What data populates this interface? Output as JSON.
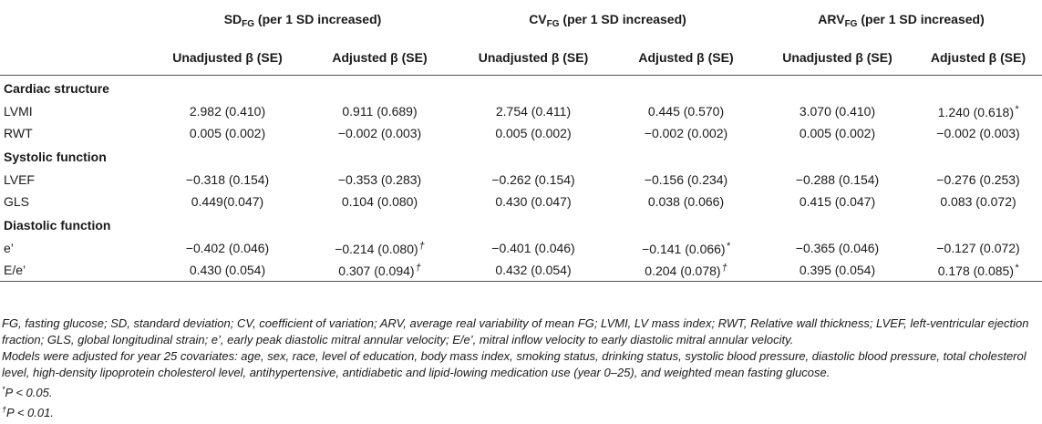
{
  "header": {
    "groups": [
      {
        "base": "SD",
        "sub": "FG",
        "suffix": " (per 1 SD increased)"
      },
      {
        "base": "CV",
        "sub": "FG",
        "suffix": " (per 1 SD increased)"
      },
      {
        "base": "ARV",
        "sub": "FG",
        "suffix": " (per 1 SD increased)"
      }
    ],
    "subheaders": [
      "Unadjusted β (SE)",
      "Adjusted β (SE)",
      "Unadjusted β (SE)",
      "Adjusted β (SE)",
      "Unadjusted β (SE)",
      "Adjusted β (SE)"
    ]
  },
  "sections": [
    {
      "title": "Cardiac structure",
      "rows": [
        {
          "label": "LVMI",
          "values": [
            "2.982 (0.410)",
            "0.911 (0.689)",
            "2.754 (0.411)",
            "0.445 (0.570)",
            "3.070 (0.410)",
            "1.240 (0.618)"
          ],
          "marks": [
            "",
            "",
            "",
            "",
            "",
            "*"
          ]
        },
        {
          "label": "RWT",
          "values": [
            "0.005 (0.002)",
            "−0.002 (0.003)",
            "0.005 (0.002)",
            "−0.002 (0.002)",
            "0.005 (0.002)",
            "−0.002 (0.003)"
          ],
          "marks": [
            "",
            "",
            "",
            "",
            "",
            ""
          ]
        }
      ]
    },
    {
      "title": "Systolic function",
      "rows": [
        {
          "label": "LVEF",
          "values": [
            "−0.318 (0.154)",
            "−0.353 (0.283)",
            "−0.262 (0.154)",
            "−0.156 (0.234)",
            "−0.288 (0.154)",
            "−0.276 (0.253)"
          ],
          "marks": [
            "",
            "",
            "",
            "",
            "",
            ""
          ]
        },
        {
          "label": "GLS",
          "values": [
            "0.449(0.047)",
            "0.104 (0.080)",
            "0.430 (0.047)",
            "0.038 (0.066)",
            "0.415 (0.047)",
            "0.083 (0.072)"
          ],
          "marks": [
            "",
            "",
            "",
            "",
            "",
            ""
          ]
        }
      ]
    },
    {
      "title": "Diastolic function",
      "rows": [
        {
          "label": "e’",
          "values": [
            "−0.402 (0.046)",
            "−0.214 (0.080)",
            "−0.401 (0.046)",
            "−0.141 (0.066)",
            "−0.365 (0.046)",
            "−0.127 (0.072)"
          ],
          "marks": [
            "",
            "†",
            "",
            "*",
            "",
            ""
          ]
        },
        {
          "label": "E/e’",
          "values": [
            "0.430 (0.054)",
            "0.307 (0.094)",
            "0.432 (0.054)",
            "0.204 (0.078)",
            "0.395 (0.054)",
            "0.178 (0.085)"
          ],
          "marks": [
            "",
            "†",
            "",
            "†",
            "",
            "*"
          ]
        }
      ]
    }
  ],
  "footnotes": {
    "abbreviations": "FG, fasting glucose; SD, standard deviation; CV, coefficient of variation; ARV, average real variability of mean FG; LVMI, LV mass index; RWT, Relative wall thickness; LVEF, left-ventricular ejection fraction; GLS, global longitudinal strain; e’, early peak diastolic mitral annular velocity; E/e’, mitral inflow velocity to early diastolic mitral annular velocity.",
    "models": "Models were adjusted for year 25 covariates: age, sex, race, level of education, body mass index, smoking status, drinking status, systolic blood pressure, diastolic blood pressure, total cholesterol level, high-density lipoprotein cholesterol level, antihypertensive, antidiabetic and lipid-lowing medication use (year 0–25), and weighted mean fasting glucose.",
    "sig1": {
      "mark": "*",
      "text": "P < 0.05."
    },
    "sig2": {
      "mark": "†",
      "text": "P < 0.01."
    }
  }
}
